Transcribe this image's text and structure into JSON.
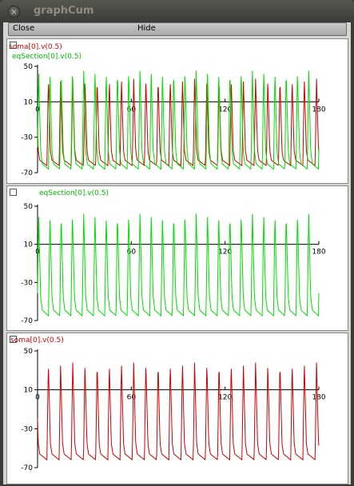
{
  "window": {
    "title": "graphCum",
    "close_icon": "×"
  },
  "menu": {
    "close_label": "Close",
    "hide_label": "Hide"
  },
  "colors": {
    "red": "#cc0000",
    "green": "#00dd00"
  },
  "chart_data": [
    {
      "type": "line",
      "legend": [
        "soma[0].v(0.5)",
        "eqSection[0].v(0.5)"
      ],
      "x_ticks": [
        "0",
        "60",
        "120",
        "180"
      ],
      "y_ticks": [
        "50",
        "10",
        "-30",
        "-70"
      ],
      "xlim": [
        0,
        180
      ],
      "ylim": [
        -70,
        50
      ],
      "series": [
        {
          "name": "soma[0].v(0.5)",
          "color": "#cc0000",
          "period": 7.8,
          "peak": 36,
          "trough": -62,
          "offset": 6
        },
        {
          "name": "eqSection[0].v(0.5)",
          "color": "#00dd00",
          "period": 7.2,
          "peak": 45,
          "trough": -66,
          "offset": 7
        }
      ]
    },
    {
      "type": "line",
      "legend": [
        "eqSection[0].v(0.5)"
      ],
      "x_ticks": [
        "0",
        "60",
        "120",
        "180"
      ],
      "y_ticks": [
        "50",
        "10",
        "-30",
        "-70"
      ],
      "xlim": [
        0,
        180
      ],
      "ylim": [
        -70,
        50
      ],
      "series": [
        {
          "name": "eqSection[0].v(0.5)",
          "color": "#00dd00",
          "period": 7.2,
          "peak": 42,
          "trough": -65,
          "offset": 7
        }
      ]
    },
    {
      "type": "line",
      "legend": [
        "soma[0].v(0.5)"
      ],
      "x_ticks": [
        "0",
        "60",
        "120",
        "180"
      ],
      "y_ticks": [
        "50",
        "10",
        "-30",
        "-70"
      ],
      "xlim": [
        0,
        180
      ],
      "ylim": [
        -70,
        50
      ],
      "series": [
        {
          "name": "soma[0].v(0.5)",
          "color": "#cc0000",
          "period": 7.8,
          "peak": 38,
          "trough": -62,
          "offset": 6
        }
      ]
    }
  ]
}
